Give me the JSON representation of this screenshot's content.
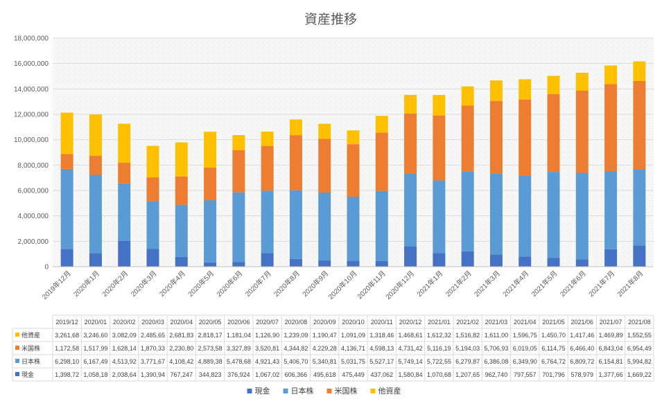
{
  "chart_data": {
    "type": "bar",
    "stacked": true,
    "title": "資産推移",
    "categories": [
      "2019年12月",
      "2020年1月",
      "2020年2月",
      "2020年3月",
      "2020年4月",
      "2020年5月",
      "2020年6月",
      "2020年7月",
      "2020年8月",
      "2020年9月",
      "2020年10月",
      "2020年11月",
      "2020年12月",
      "2021年1月",
      "2021年2月",
      "2021年3月",
      "2021年4月",
      "2021年5月",
      "2021年6月",
      "2021年7月",
      "2021年8月"
    ],
    "table_headers": [
      "2019/12",
      "2020/01",
      "2020/02",
      "2020/03",
      "2020/04",
      "2020/05",
      "2020/06",
      "2020/07",
      "2020/08",
      "2020/09",
      "2020/10",
      "2020/11",
      "2020/12",
      "2021/01",
      "2021/02",
      "2021/03",
      "2021/04",
      "2021/05",
      "2021/06",
      "2021/07",
      "2021/08"
    ],
    "series": [
      {
        "name": "現金",
        "color": "#4472C4",
        "values": [
          1398720,
          1058180,
          2038640,
          1390940,
          767247,
          344823,
          376924,
          1067020,
          606366,
          495618,
          475449,
          437062,
          1580840,
          1070680,
          1207650,
          962740,
          797557,
          701796,
          578979,
          1377660,
          1669220
        ],
        "labels": [
          "1,398,72",
          "1,058,18",
          "2,038,64",
          "1,390,94",
          "767,247",
          "344,823",
          "376,924",
          "1,067,02",
          "606,366",
          "495,618",
          "475,449",
          "437,062",
          "1,580,84",
          "1,070,68",
          "1,207,65",
          "962,740",
          "797,557",
          "701,796",
          "578,979",
          "1,377,66",
          "1,669,22"
        ]
      },
      {
        "name": "日本株",
        "color": "#5B9BD5",
        "values": [
          6298100,
          6167490,
          4513920,
          3771670,
          4108420,
          4889380,
          5478680,
          4921430,
          5406700,
          5340810,
          5031750,
          5527170,
          5749140,
          5722550,
          6279870,
          6386080,
          6349900,
          6764720,
          6809720,
          6154810,
          5994820
        ],
        "labels": [
          "6,298,10",
          "6,167,49",
          "4,513,92",
          "3,771,67",
          "4,108,42",
          "4,889,38",
          "5,478,68",
          "4,921,43",
          "5,406,70",
          "5,340,81",
          "5,031,75",
          "5,527,17",
          "5,749,14",
          "5,722,55",
          "6,279,87",
          "6,386,08",
          "6,349,90",
          "6,764,72",
          "6,809,72",
          "6,154,81",
          "5,994,82"
        ]
      },
      {
        "name": "米国株",
        "color": "#ED7D31",
        "values": [
          1172580,
          1517990,
          1628140,
          1870330,
          2230800,
          2573580,
          3327890,
          3520810,
          4344820,
          4229280,
          4136710,
          4598130,
          4731420,
          5116190,
          5194030,
          5706930,
          6019050,
          6114750,
          6466400,
          6843040,
          6954490
        ],
        "labels": [
          "1,172,58",
          "1,517,99",
          "1,628,14",
          "1,870,33",
          "2,230,80",
          "2,573,58",
          "3,327,89",
          "3,520,81",
          "4,344,82",
          "4,229,28",
          "4,136,71",
          "4,598,13",
          "4,731,42",
          "5,116,19",
          "5,194,03",
          "5,706,93",
          "6,019,05",
          "6,114,75",
          "6,466,40",
          "6,843,04",
          "6,954,49"
        ]
      },
      {
        "name": "他資産",
        "color": "#FFC000",
        "values": [
          3261680,
          3246600,
          3082090,
          2485650,
          2681830,
          2818170,
          1181040,
          1126900,
          1239090,
          1190470,
          1091090,
          1318460,
          1468610,
          1612320,
          1516820,
          1611000,
          1596750,
          1450700,
          1417460,
          1469890,
          1552550
        ],
        "labels": [
          "3,261,68",
          "3,246,60",
          "3,082,09",
          "2,485,65",
          "2,681,83",
          "2,818,17",
          "1,181,04",
          "1,126,90",
          "1,239,09",
          "1,190,47",
          "1,091,09",
          "1,318,46",
          "1,468,61",
          "1,612,32",
          "1,516,82",
          "1,611,00",
          "1,596,75",
          "1,450,70",
          "1,417,46",
          "1,469,89",
          "1,552,55"
        ]
      }
    ],
    "table_row_order": [
      "他資産",
      "米国株",
      "日本株",
      "現金"
    ],
    "legend_order": [
      "現金",
      "日本株",
      "米国株",
      "他資産"
    ],
    "y_ticks": [
      "0",
      "2,000,000",
      "4,000,000",
      "6,000,000",
      "8,000,000",
      "10,000,000",
      "12,000,000",
      "14,000,000",
      "16,000,000",
      "18,000,000"
    ],
    "ylim": [
      0,
      18000000
    ],
    "ystep": 2000000,
    "grid": true,
    "legend_position": "bottom",
    "data_table": true
  }
}
